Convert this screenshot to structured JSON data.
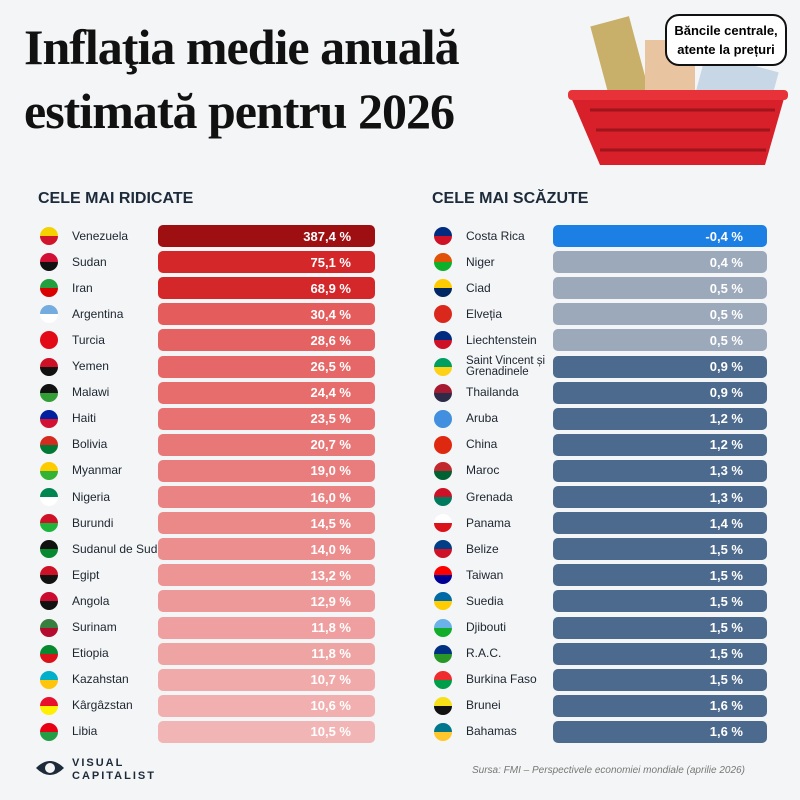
{
  "header": {
    "title_line1": "Inflaţia medie anuală",
    "title_line2": "estimată pentru 2026",
    "bubble_line1": "Băncile centrale,",
    "bubble_line2": "atente la prețuri"
  },
  "sections": [
    {
      "heading": "CELE MAI RIDICATE",
      "rows": [
        {
          "country": "Venezuela",
          "value": "387,4 %"
        },
        {
          "country": "Sudan",
          "value": "75,1 %"
        },
        {
          "country": "Iran",
          "value": "68,9 %"
        },
        {
          "country": "Argentina",
          "value": "30,4 %"
        },
        {
          "country": "Turcia",
          "value": "28,6 %"
        },
        {
          "country": "Yemen",
          "value": "26,5 %"
        },
        {
          "country": "Malawi",
          "value": "24,4 %"
        },
        {
          "country": "Haiti",
          "value": "23,5 %"
        },
        {
          "country": "Bolivia",
          "value": "20,7 %"
        },
        {
          "country": "Myanmar",
          "value": "19,0 %"
        },
        {
          "country": "Nigeria",
          "value": "16,0 %"
        },
        {
          "country": "Burundi",
          "value": "14,5 %"
        },
        {
          "country": "Sudanul de Sud",
          "value": "14,0 %"
        },
        {
          "country": "Egipt",
          "value": "13,2 %"
        },
        {
          "country": "Angola",
          "value": "12,9 %"
        },
        {
          "country": "Surinam",
          "value": "11,8 %"
        },
        {
          "country": "Etiopia",
          "value": "11,8 %"
        },
        {
          "country": "Kazahstan",
          "value": "10,7 %"
        },
        {
          "country": "Kârgâzstan",
          "value": "10,6 %"
        },
        {
          "country": "Libia",
          "value": "10,5 %"
        }
      ]
    },
    {
      "heading": "CELE MAI SCĂZUTE",
      "rows": [
        {
          "country": "Costa Rica",
          "value": "-0,4 %"
        },
        {
          "country": "Niger",
          "value": "0,4 %"
        },
        {
          "country": "Ciad",
          "value": "0,5 %"
        },
        {
          "country": "Elveția",
          "value": "0,5 %"
        },
        {
          "country": "Liechtenstein",
          "value": "0,5 %"
        },
        {
          "country": "Saint Vincent și Grenadinele",
          "value": "0,9 %"
        },
        {
          "country": "Thailanda",
          "value": "0,9 %"
        },
        {
          "country": "Aruba",
          "value": "1,2 %"
        },
        {
          "country": "China",
          "value": "1,2 %"
        },
        {
          "country": "Maroc",
          "value": "1,3 %"
        },
        {
          "country": "Grenada",
          "value": "1,3 %"
        },
        {
          "country": "Panama",
          "value": "1,4 %"
        },
        {
          "country": "Belize",
          "value": "1,5 %"
        },
        {
          "country": "Taiwan",
          "value": "1,5 %"
        },
        {
          "country": "Suedia",
          "value": "1,5 %"
        },
        {
          "country": "Djibouti",
          "value": "1,5 %"
        },
        {
          "country": "R.A.C.",
          "value": "1,5 %"
        },
        {
          "country": "Burkina Faso",
          "value": "1,5 %"
        },
        {
          "country": "Brunei",
          "value": "1,6 %"
        },
        {
          "country": "Bahamas",
          "value": "1,6 %"
        }
      ]
    }
  ],
  "footer": {
    "logo_line1": "VISUAL",
    "logo_line2": "CAPITALIST",
    "source": "Sursa: FMI – Perspectivele economiei mondiale (aprilie 2026)"
  }
}
